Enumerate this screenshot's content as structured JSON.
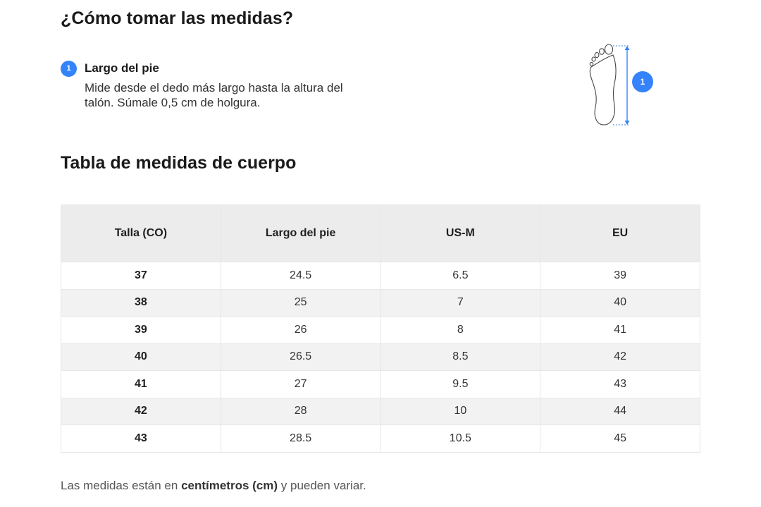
{
  "section1": {
    "title": "¿Cómo tomar las medidas?",
    "step": {
      "number": "1",
      "title": "Largo del pie",
      "description": "Mide desde el dedo más largo hasta la altura del talón. Súmale 0,5 cm de holgura."
    },
    "illustration": {
      "marker": "1"
    }
  },
  "section2": {
    "title": "Tabla de medidas de cuerpo",
    "table": {
      "headers": [
        "Talla (CO)",
        "Largo del pie",
        "US-M",
        "EU"
      ],
      "rows": [
        [
          "37",
          "24.5",
          "6.5",
          "39"
        ],
        [
          "38",
          "25",
          "7",
          "40"
        ],
        [
          "39",
          "26",
          "8",
          "41"
        ],
        [
          "40",
          "26.5",
          "8.5",
          "42"
        ],
        [
          "41",
          "27",
          "9.5",
          "43"
        ],
        [
          "42",
          "28",
          "10",
          "44"
        ],
        [
          "43",
          "28.5",
          "10.5",
          "45"
        ]
      ]
    }
  },
  "note": {
    "before": "Las medidas están en ",
    "bold": "centímetros (cm)",
    "after": " y pueden variar."
  },
  "colors": {
    "accent": "#3483fa",
    "header_bg": "#ececec",
    "stripe_bg": "#f2f2f2"
  }
}
